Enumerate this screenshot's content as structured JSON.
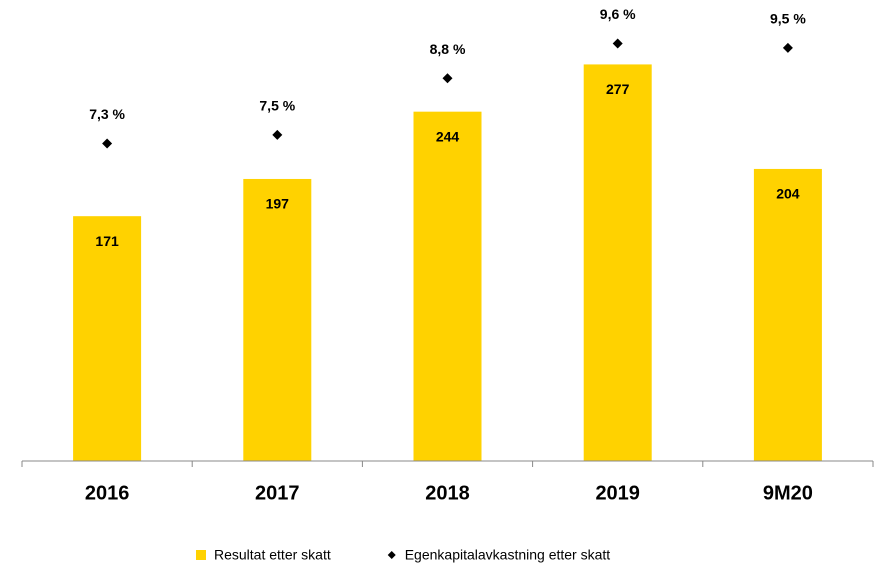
{
  "chart_data": {
    "type": "bar",
    "categories": [
      "2016",
      "2017",
      "2018",
      "2019",
      "9M20"
    ],
    "ylim": [
      0,
      322
    ],
    "y2lim": [
      0,
      10.6
    ],
    "series": [
      {
        "name": "Resultat etter skatt",
        "type": "bar",
        "color": "#ffd200",
        "values": [
          171,
          197,
          244,
          277,
          204
        ]
      },
      {
        "name": "Egenkapitalavkastning etter skatt",
        "type": "scatter",
        "axis": "y2",
        "color": "#000000",
        "values": [
          7.3,
          7.5,
          8.8,
          9.6,
          9.5
        ],
        "value_labels": [
          "7,3 %",
          "7,5 %",
          "8,8 %",
          "9,6 %",
          "9,5 %"
        ]
      }
    ]
  }
}
